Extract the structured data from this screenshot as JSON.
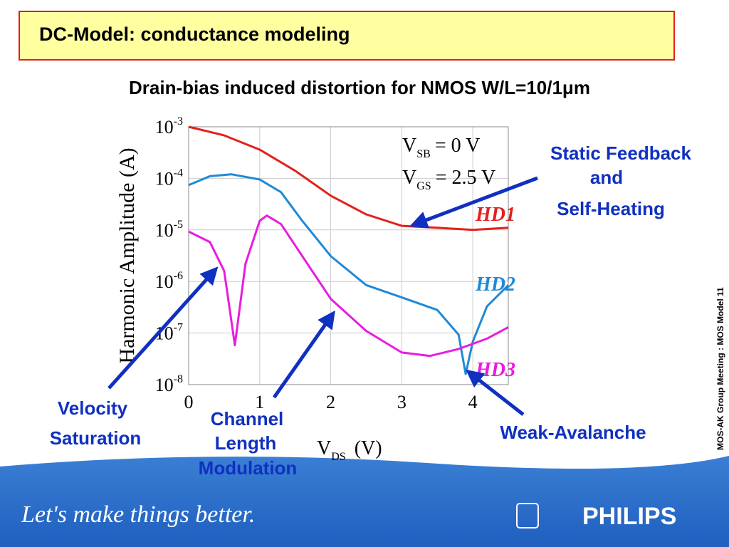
{
  "slide": {
    "header": "DC-Model: conductance modeling",
    "subtitle": "Drain-bias induced distortion for NMOS W/L=10/1μm",
    "callouts": {
      "static_feedback": [
        "Static Feedback",
        "and",
        "Self-Heating"
      ],
      "velocity": [
        "Velocity",
        "Saturation"
      ],
      "channel": [
        "Channel",
        "Length",
        "Modulation"
      ],
      "avalanche": "Weak-Avalanche"
    },
    "side_note": "MOS-AK Group Meeting : MOS Model 11",
    "slogan": "Let's make things better.",
    "brand": "PHILIPS"
  },
  "chart_data": {
    "type": "line",
    "y_label": "Harmonic Amplitude (A)",
    "x_label": {
      "main": "V",
      "sub": "DS",
      "unit": "(V)"
    },
    "conditions": [
      {
        "main": "V",
        "sub": "SB",
        "rest": "= 0 V"
      },
      {
        "main": "V",
        "sub": "GS",
        "rest": "= 2.5 V"
      }
    ],
    "log_y": true,
    "grid": true,
    "xlim": [
      0,
      4.5
    ],
    "xticks": [
      0,
      1,
      2,
      3,
      4
    ],
    "ylim": [
      1e-08,
      0.001
    ],
    "yticks": [
      {
        "value": 0.001,
        "label": "10-3"
      },
      {
        "value": 0.0001,
        "label": "10-4"
      },
      {
        "value": 1e-05,
        "label": "10-5"
      },
      {
        "value": 1e-06,
        "label": "10-6"
      },
      {
        "value": 1e-07,
        "label": "10-7"
      },
      {
        "value": 1e-08,
        "label": "10-8"
      }
    ],
    "series": [
      {
        "name": "HD1",
        "color": "#e3201c",
        "x": [
          0,
          0.5,
          1.0,
          1.5,
          2.0,
          2.5,
          3.0,
          3.5,
          4.0,
          4.5
        ],
        "values": [
          0.001,
          0.00068,
          0.00036,
          0.00014,
          4.6e-05,
          2e-05,
          1.2e-05,
          1.1e-05,
          1e-05,
          1.1e-05
        ]
      },
      {
        "name": "HD2",
        "color": "#1e8ad6",
        "x": [
          0,
          0.3,
          0.6,
          1.0,
          1.3,
          1.6,
          2.0,
          2.5,
          3.0,
          3.5,
          3.8,
          3.9,
          4.0,
          4.2,
          4.5
        ],
        "values": [
          7.4e-05,
          0.00011,
          0.00012,
          9.5e-05,
          5.4e-05,
          1.5e-05,
          3.1e-06,
          8.5e-07,
          4.9e-07,
          2.8e-07,
          9.3e-08,
          1.6e-08,
          6.8e-08,
          3.3e-07,
          8.5e-07
        ]
      },
      {
        "name": "HD3",
        "color": "#e81ce0",
        "x": [
          0,
          0.3,
          0.5,
          0.65,
          0.8,
          1.0,
          1.1,
          1.3,
          1.6,
          2.0,
          2.5,
          3.0,
          3.4,
          3.8,
          4.2,
          4.5
        ],
        "values": [
          9.3e-06,
          5.8e-06,
          1.6e-06,
          5.8e-08,
          2.2e-06,
          1.5e-05,
          1.9e-05,
          1.3e-05,
          3.1e-06,
          4.6e-07,
          1.1e-07,
          4.2e-08,
          3.6e-08,
          4.9e-08,
          7.8e-08,
          1.3e-07
        ]
      }
    ]
  }
}
